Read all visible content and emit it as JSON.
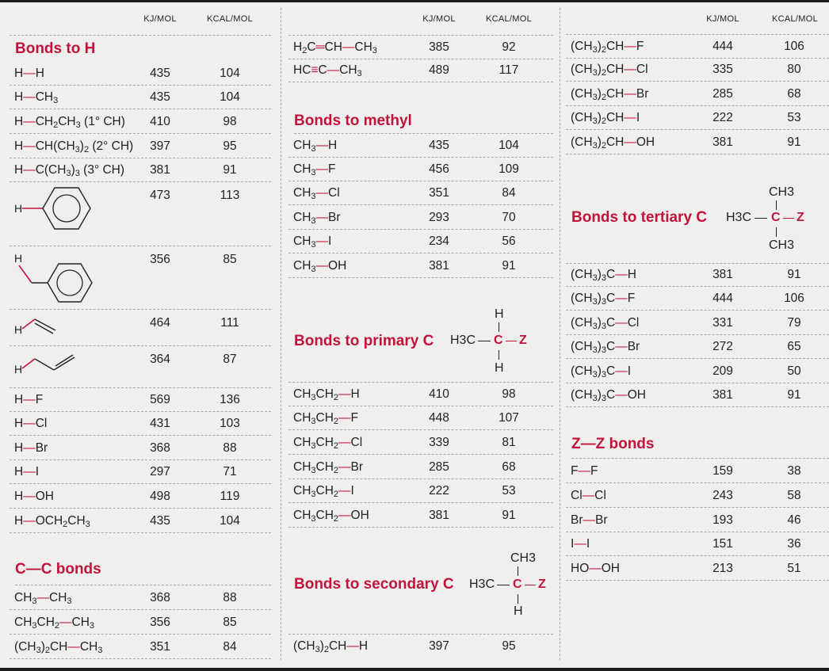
{
  "header": {
    "kj": "KJ/MOL",
    "kcal": "KCAL/MOL"
  },
  "col1": {
    "bonds_to_h": {
      "title": "Bonds to H",
      "rows": [
        {
          "label": "H—H",
          "kj": "435",
          "kcal": "104"
        },
        {
          "label": "H—CH3",
          "kj": "435",
          "kcal": "104"
        },
        {
          "label": "H—CH2CH3 (1° CH)",
          "kj": "410",
          "kcal": "98"
        },
        {
          "label": "H—CH(CH3)2 (2° CH)",
          "kj": "397",
          "kcal": "95"
        },
        {
          "label": "H—C(CH3)3 (3° CH)",
          "kj": "381",
          "kcal": "91"
        },
        {
          "label": "phenyl H",
          "kj": "473",
          "kcal": "113"
        },
        {
          "label": "benzyl H",
          "kj": "356",
          "kcal": "85"
        },
        {
          "label": "vinyl H",
          "kj": "464",
          "kcal": "111"
        },
        {
          "label": "allyl H",
          "kj": "364",
          "kcal": "87"
        },
        {
          "label": "H—F",
          "kj": "569",
          "kcal": "136"
        },
        {
          "label": "H—Cl",
          "kj": "431",
          "kcal": "103"
        },
        {
          "label": "H—Br",
          "kj": "368",
          "kcal": "88"
        },
        {
          "label": "H—I",
          "kj": "297",
          "kcal": "71"
        },
        {
          "label": "H—OH",
          "kj": "498",
          "kcal": "119"
        },
        {
          "label": "H—OCH2CH3",
          "kj": "435",
          "kcal": "104"
        }
      ],
      "struct_h": "H"
    },
    "cc_bonds": {
      "title": "C—C bonds",
      "rows": [
        {
          "label": "CH3—CH3",
          "kj": "368",
          "kcal": "88"
        },
        {
          "label": "CH3CH2—CH3",
          "kj": "356",
          "kcal": "85"
        },
        {
          "label": "(CH3)2CH—CH3",
          "kj": "351",
          "kcal": "84"
        }
      ]
    }
  },
  "col2": {
    "unsat": {
      "rows": [
        {
          "label": "H2C═CH—CH3",
          "kj": "385",
          "kcal": "92"
        },
        {
          "label": "HC≡C—CH3",
          "kj": "489",
          "kcal": "117"
        }
      ]
    },
    "methyl": {
      "title": "Bonds to methyl",
      "rows": [
        {
          "label": "CH3—H",
          "kj": "435",
          "kcal": "104"
        },
        {
          "label": "CH3—F",
          "kj": "456",
          "kcal": "109"
        },
        {
          "label": "CH3—Cl",
          "kj": "351",
          "kcal": "84"
        },
        {
          "label": "CH3—Br",
          "kj": "293",
          "kcal": "70"
        },
        {
          "label": "CH3—I",
          "kj": "234",
          "kcal": "56"
        },
        {
          "label": "CH3—OH",
          "kj": "381",
          "kcal": "91"
        }
      ]
    },
    "primary": {
      "title": "Bonds to primary C",
      "struct": {
        "top": "H",
        "left": "H3C",
        "center": "C",
        "right": "Z",
        "bottom": "H"
      },
      "rows": [
        {
          "label": "CH3CH2—H",
          "kj": "410",
          "kcal": "98"
        },
        {
          "label": "CH3CH2—F",
          "kj": "448",
          "kcal": "107"
        },
        {
          "label": "CH3CH2—Cl",
          "kj": "339",
          "kcal": "81"
        },
        {
          "label": "CH3CH2—Br",
          "kj": "285",
          "kcal": "68"
        },
        {
          "label": "CH3CH2—I",
          "kj": "222",
          "kcal": "53"
        },
        {
          "label": "CH3CH2—OH",
          "kj": "381",
          "kcal": "91"
        }
      ]
    },
    "secondary": {
      "title": "Bonds to secondary C",
      "struct": {
        "top": "CH3",
        "left": "H3C",
        "center": "C",
        "right": "Z",
        "bottom": "H"
      },
      "rows": [
        {
          "label": "(CH3)2CH—H",
          "kj": "397",
          "kcal": "95"
        }
      ]
    }
  },
  "col3": {
    "secondary_cont": {
      "rows": [
        {
          "label": "(CH3)2CH—F",
          "kj": "444",
          "kcal": "106"
        },
        {
          "label": "(CH3)2CH—Cl",
          "kj": "335",
          "kcal": "80"
        },
        {
          "label": "(CH3)2CH—Br",
          "kj": "285",
          "kcal": "68"
        },
        {
          "label": "(CH3)2CH—I",
          "kj": "222",
          "kcal": "53"
        },
        {
          "label": "(CH3)2CH—OH",
          "kj": "381",
          "kcal": "91"
        }
      ]
    },
    "tertiary": {
      "title": "Bonds to tertiary C",
      "struct": {
        "top": "CH3",
        "left": "H3C",
        "center": "C",
        "right": "Z",
        "bottom": "CH3"
      },
      "rows": [
        {
          "label": "(CH3)3C—H",
          "kj": "381",
          "kcal": "91"
        },
        {
          "label": "(CH3)3C—F",
          "kj": "444",
          "kcal": "106"
        },
        {
          "label": "(CH3)3C—Cl",
          "kj": "331",
          "kcal": "79"
        },
        {
          "label": "(CH3)3C—Br",
          "kj": "272",
          "kcal": "65"
        },
        {
          "label": "(CH3)3C—I",
          "kj": "209",
          "kcal": "50"
        },
        {
          "label": "(CH3)3C—OH",
          "kj": "381",
          "kcal": "91"
        }
      ]
    },
    "zz": {
      "title": "Z—Z bonds",
      "rows": [
        {
          "label": "F—F",
          "kj": "159",
          "kcal": "38"
        },
        {
          "label": "Cl—Cl",
          "kj": "243",
          "kcal": "58"
        },
        {
          "label": "Br—Br",
          "kj": "193",
          "kcal": "46"
        },
        {
          "label": "I—I",
          "kj": "151",
          "kcal": "36"
        },
        {
          "label": "HO—OH",
          "kj": "213",
          "kcal": "51"
        }
      ]
    }
  },
  "colors": {
    "accent": "#c0143c",
    "background": "#f0efed",
    "text": "#222222",
    "rule": "#a8a8a8"
  }
}
